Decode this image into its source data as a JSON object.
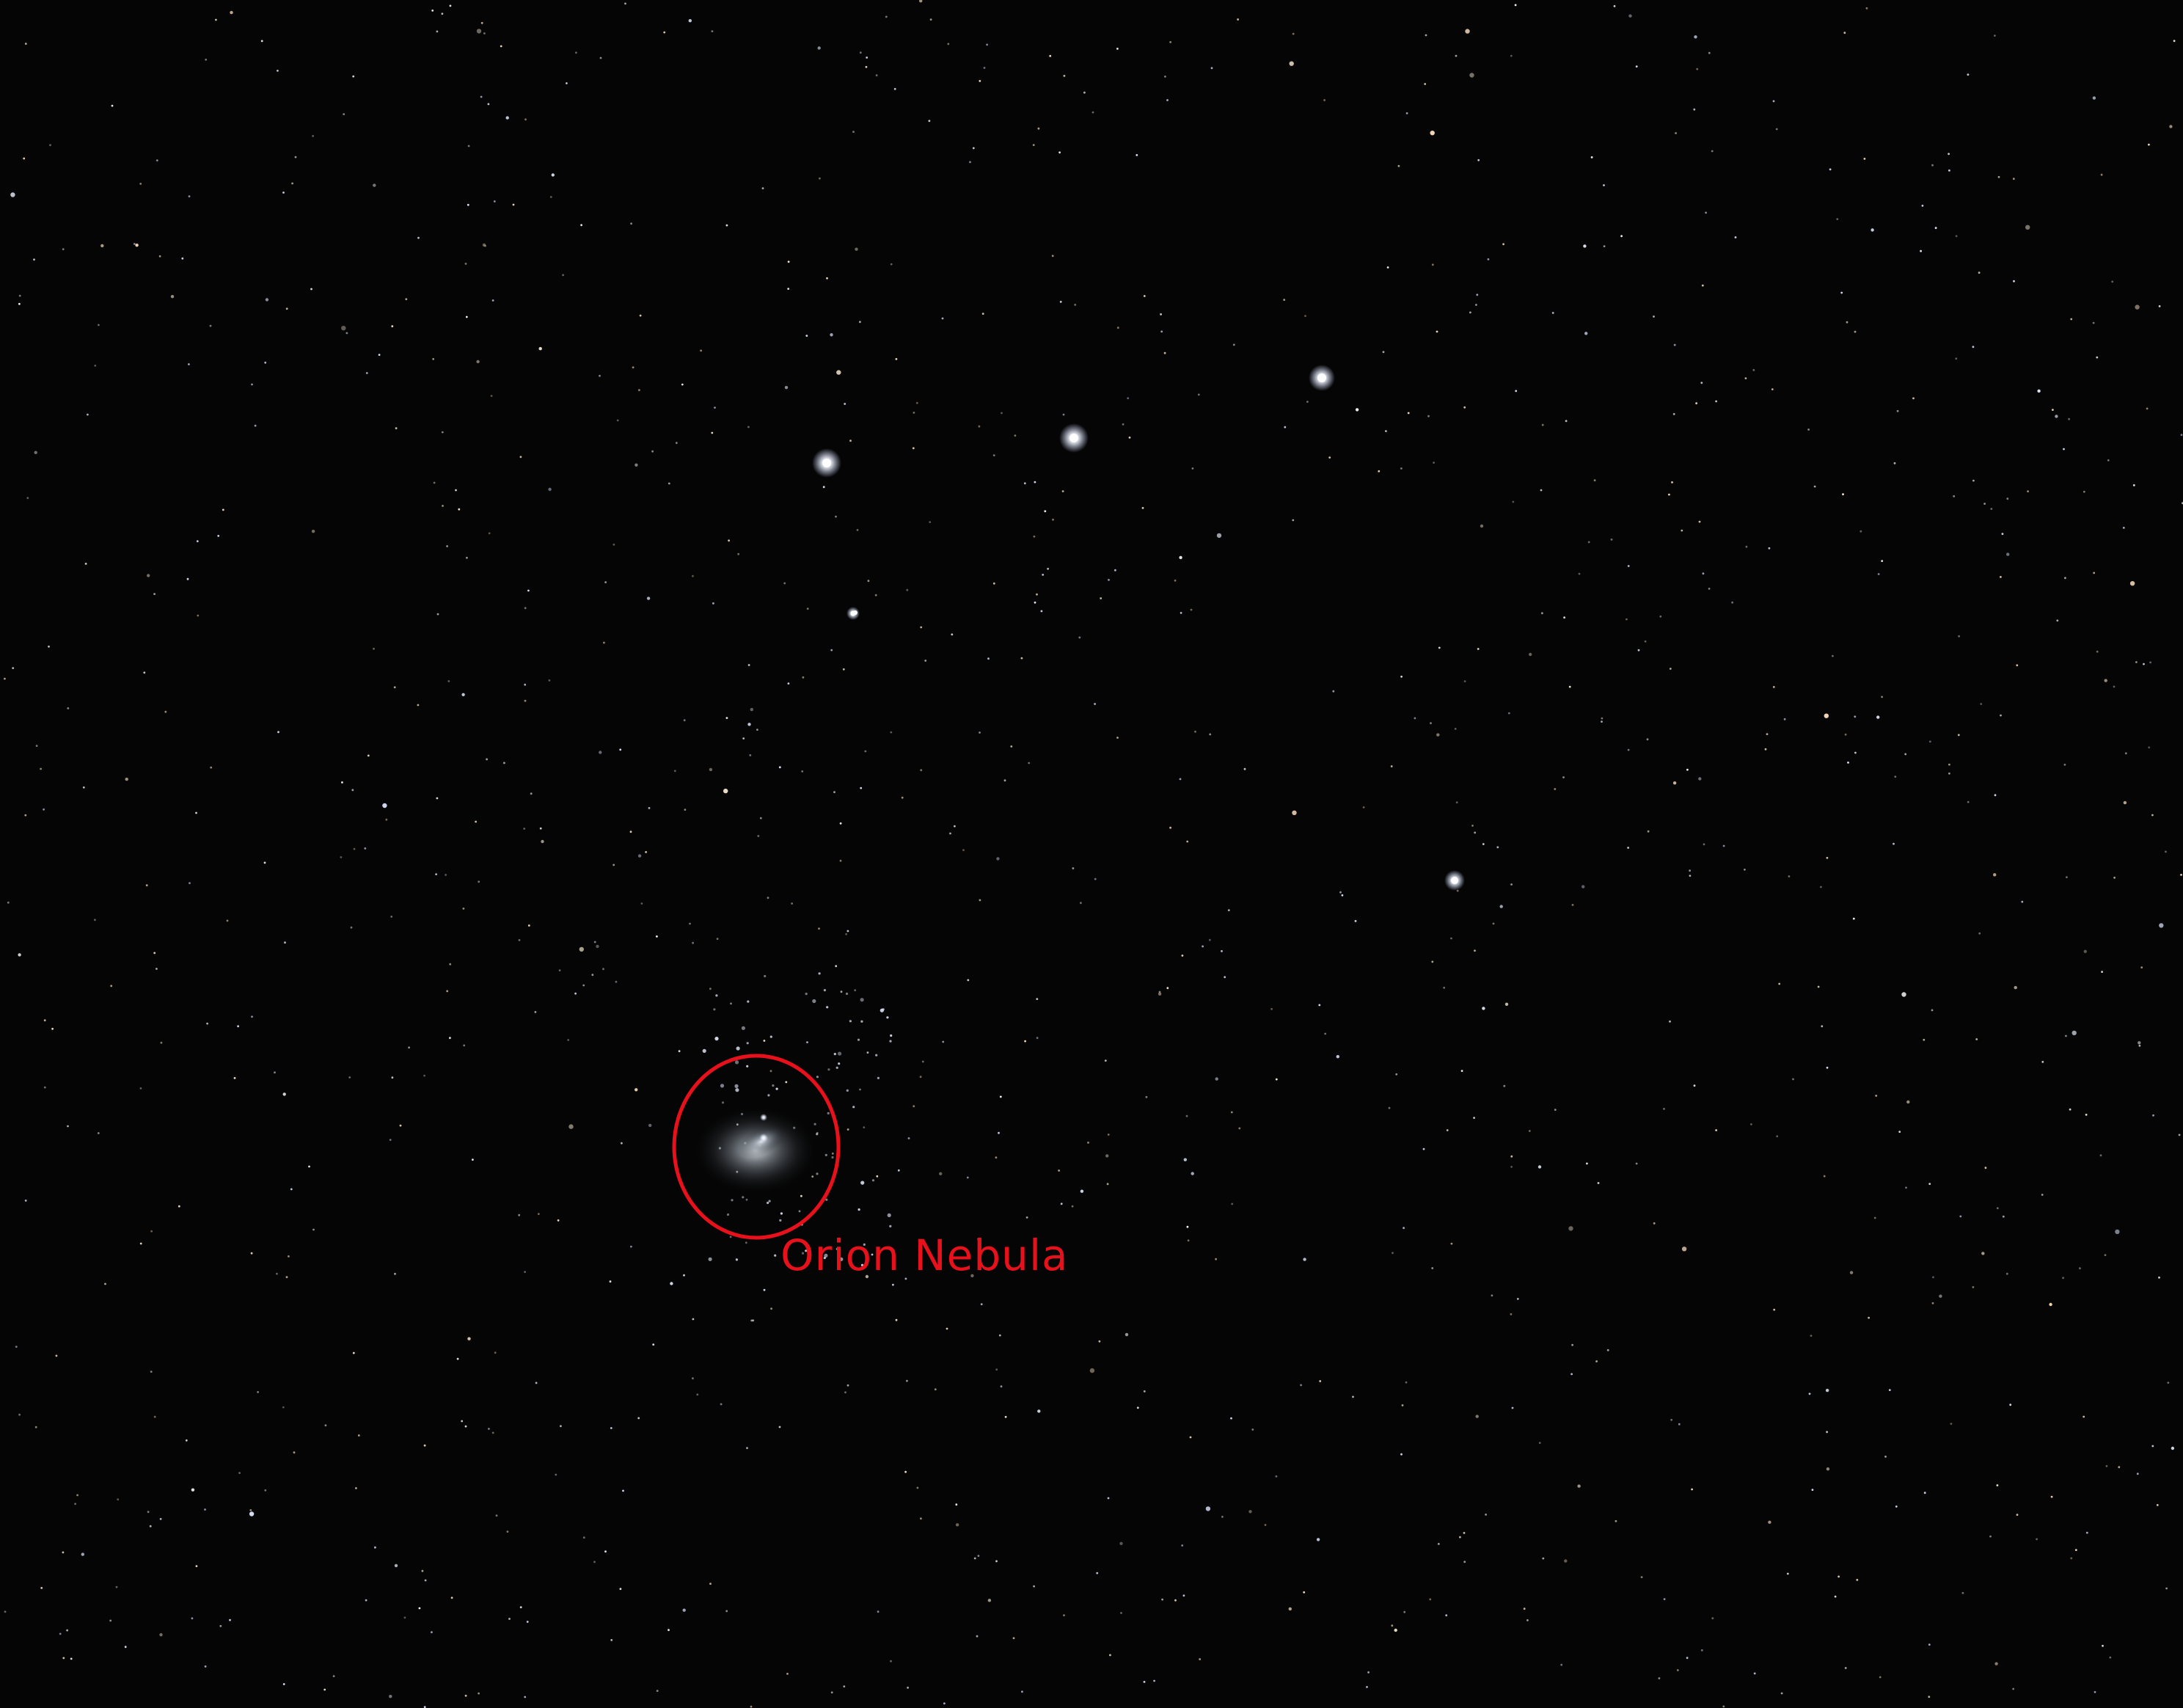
{
  "annotation": {
    "label": "Orion Nebula",
    "color": "#e8101a"
  },
  "colors": {
    "sky": "#050505",
    "star": "#ffffff",
    "nebula": "#b9c0c8"
  }
}
